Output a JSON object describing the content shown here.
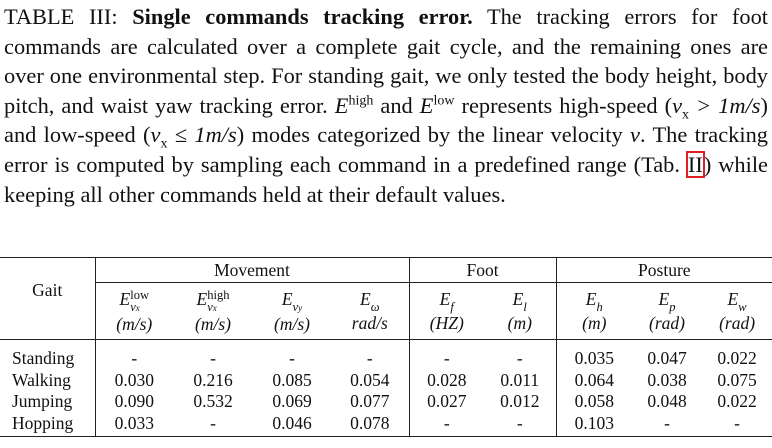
{
  "caption": {
    "label": "TABLE III:",
    "title": "Single commands tracking error.",
    "body": [
      "The tracking errors for foot commands are calculated over a complete gait cycle, and the remaining ones are over one environmental step. For standing gait, we only tested the body height, body pitch, and waist yaw tracking error. ",
      "E",
      "high",
      " and ",
      "E",
      "low",
      " represents high-speed (",
      "v",
      "x",
      " > 1m/s",
      ") and low-speed (",
      "v",
      "x",
      " ≤ 1m/s",
      ") modes categorized by the linear velocity ",
      "v",
      ". The tracking error is computed by sampling each command in a predefined range (Tab. ",
      "II",
      ") while keeping all other commands held at their default values."
    ]
  },
  "table": {
    "row_header": "Gait",
    "groups": [
      {
        "label": "Movement",
        "span": 4
      },
      {
        "label": "Foot",
        "span": 2
      },
      {
        "label": "Posture",
        "span": 3
      }
    ],
    "columns": [
      {
        "symbol": "E",
        "sub": "v",
        "subsub": "x",
        "sup": "low",
        "unit": "(m/s)"
      },
      {
        "symbol": "E",
        "sub": "v",
        "subsub": "x",
        "sup": "high",
        "unit": "(m/s)"
      },
      {
        "symbol": "E",
        "sub": "v",
        "subsub": "y",
        "unit": "(m/s)"
      },
      {
        "symbol": "E",
        "sub": "ω",
        "unit": "rad/s"
      },
      {
        "symbol": "E",
        "sub": "f",
        "unit": "(HZ)"
      },
      {
        "symbol": "E",
        "sub": "l",
        "unit": "(m)"
      },
      {
        "symbol": "E",
        "sub": "h",
        "unit": "(m)"
      },
      {
        "symbol": "E",
        "sub": "p",
        "unit": "(rad)"
      },
      {
        "symbol": "E",
        "sub": "w",
        "unit": "(rad)"
      }
    ],
    "rows": [
      [
        "Standing",
        "-",
        "-",
        "-",
        "-",
        "-",
        "-",
        "0.035",
        "0.047",
        "0.022"
      ],
      [
        "Walking",
        "0.030",
        "0.216",
        "0.085",
        "0.054",
        "0.028",
        "0.011",
        "0.064",
        "0.038",
        "0.075"
      ],
      [
        "Jumping",
        "0.090",
        "0.532",
        "0.069",
        "0.077",
        "0.027",
        "0.012",
        "0.058",
        "0.048",
        "0.022"
      ],
      [
        "Hopping",
        "0.033",
        "-",
        "0.046",
        "0.078",
        "-",
        "-",
        "0.103",
        "-",
        "-"
      ]
    ]
  }
}
